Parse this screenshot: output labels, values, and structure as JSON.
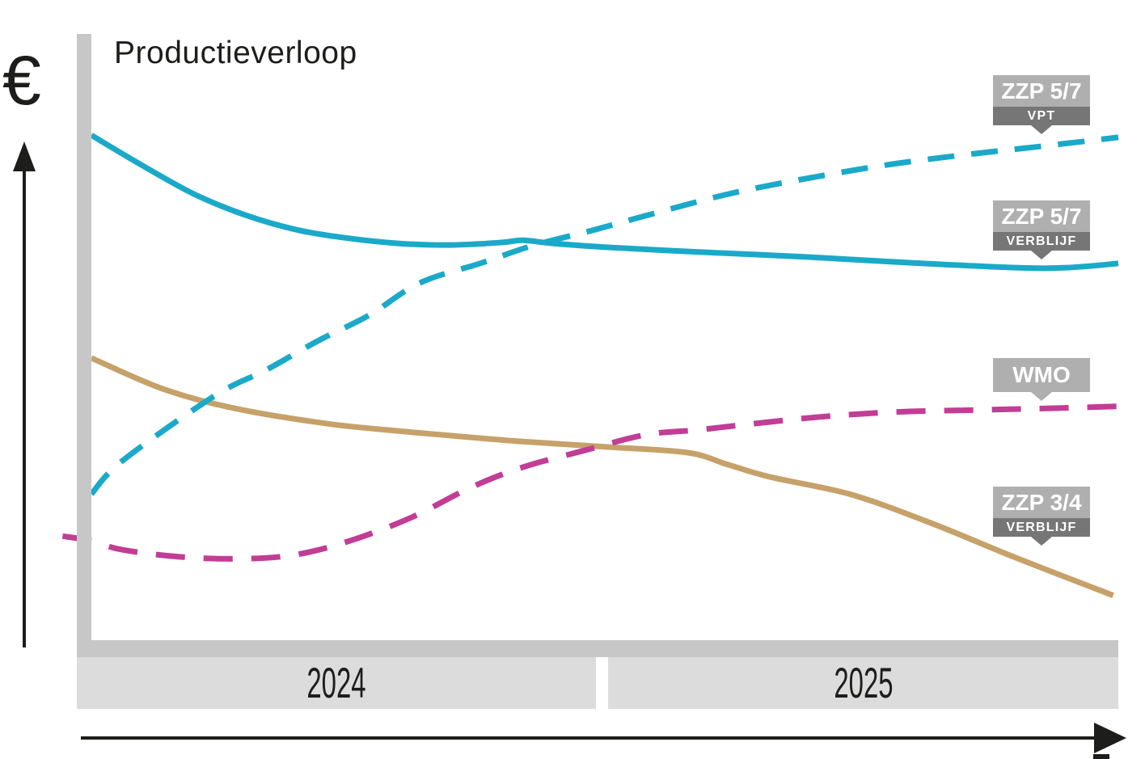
{
  "title": "Productieverloop",
  "y_axis": {
    "symbol": "€"
  },
  "x_axis": {
    "periods": [
      "2024",
      "2025"
    ]
  },
  "callouts": [
    {
      "main": "ZZP 5/7",
      "sub": "VPT"
    },
    {
      "main": "ZZP 5/7",
      "sub": "VERBLIJF"
    },
    {
      "main": "WMO"
    },
    {
      "main": "ZZP 3/4",
      "sub": "VERBLIJF"
    }
  ],
  "colors": {
    "teal": "#1BA9C9",
    "magenta": "#C23D96",
    "tan": "#C6A169",
    "axis_gray": "#C7C7C7",
    "band_gray": "#DCDCDC",
    "label_light": "#AFAFAF",
    "label_dark": "#767676",
    "ink": "#1D1D1B"
  },
  "chart_data": {
    "type": "line",
    "title": "Productieverloop",
    "xlabel_periods": [
      "2024",
      "2025"
    ],
    "ylabel": "€",
    "value_scale": "relative 0-100 (axes carry no numeric ticks)",
    "x_scale": "fraction of timeline, 0 = start 2024, 1 = end 2025",
    "grid": false,
    "legend_position": "right callout labels",
    "series": [
      {
        "name": "ZZP 5/7 VPT",
        "line": "dashed",
        "color_key": "teal",
        "dash": [
          33,
          21
        ],
        "points": [
          [
            0,
            27.5
          ],
          [
            0.03,
            33.8
          ],
          [
            0.12,
            46.2
          ],
          [
            0.17,
            51.1
          ],
          [
            0.22,
            56.6
          ],
          [
            0.27,
            61.5
          ],
          [
            0.32,
            67.7
          ],
          [
            0.38,
            71.5
          ],
          [
            0.43,
            74.8
          ],
          [
            0.49,
            77.8
          ],
          [
            0.54,
            80.5
          ],
          [
            0.62,
            84.6
          ],
          [
            0.7,
            87.7
          ],
          [
            0.78,
            90.3
          ],
          [
            0.86,
            92.3
          ],
          [
            0.93,
            93.8
          ],
          [
            1.0,
            95.4
          ]
        ]
      },
      {
        "name": "ZZP 5/7 VERBLIJF",
        "line": "solid",
        "color_key": "teal",
        "points": [
          [
            0,
            95.8
          ],
          [
            0.05,
            90.0
          ],
          [
            0.1,
            84.6
          ],
          [
            0.15,
            80.6
          ],
          [
            0.2,
            77.8
          ],
          [
            0.25,
            76.2
          ],
          [
            0.3,
            75.2
          ],
          [
            0.35,
            74.9
          ],
          [
            0.4,
            75.4
          ],
          [
            0.42,
            75.8
          ],
          [
            0.45,
            75.2
          ],
          [
            0.5,
            74.5
          ],
          [
            0.6,
            73.5
          ],
          [
            0.7,
            72.6
          ],
          [
            0.8,
            71.5
          ],
          [
            0.9,
            70.6
          ],
          [
            0.95,
            70.6
          ],
          [
            1.0,
            71.4
          ]
        ]
      },
      {
        "name": "WMO",
        "line": "dashed",
        "color_key": "magenta",
        "dash": [
          36,
          23
        ],
        "points": [
          [
            -0.028,
            19.5
          ],
          [
            0,
            18.6
          ],
          [
            0.03,
            16.9
          ],
          [
            0.09,
            15.5
          ],
          [
            0.15,
            15.2
          ],
          [
            0.2,
            16.0
          ],
          [
            0.25,
            18.5
          ],
          [
            0.31,
            22.9
          ],
          [
            0.37,
            28.8
          ],
          [
            0.42,
            32.6
          ],
          [
            0.48,
            35.8
          ],
          [
            0.54,
            38.8
          ],
          [
            0.59,
            39.7
          ],
          [
            0.64,
            40.8
          ],
          [
            0.71,
            42.2
          ],
          [
            0.78,
            43.1
          ],
          [
            0.86,
            43.5
          ],
          [
            0.93,
            43.8
          ],
          [
            1.0,
            44.2
          ]
        ]
      },
      {
        "name": "ZZP 3/4 VERBLIJF",
        "line": "solid",
        "color_key": "tan",
        "points": [
          [
            0,
            53.4
          ],
          [
            0.07,
            47.5
          ],
          [
            0.14,
            43.8
          ],
          [
            0.23,
            40.9
          ],
          [
            0.3,
            39.5
          ],
          [
            0.34,
            38.8
          ],
          [
            0.42,
            37.5
          ],
          [
            0.5,
            36.5
          ],
          [
            0.58,
            35.4
          ],
          [
            0.62,
            33.1
          ],
          [
            0.66,
            30.8
          ],
          [
            0.74,
            27.4
          ],
          [
            0.82,
            21.8
          ],
          [
            0.9,
            15.4
          ],
          [
            0.995,
            8.2
          ]
        ]
      }
    ]
  }
}
